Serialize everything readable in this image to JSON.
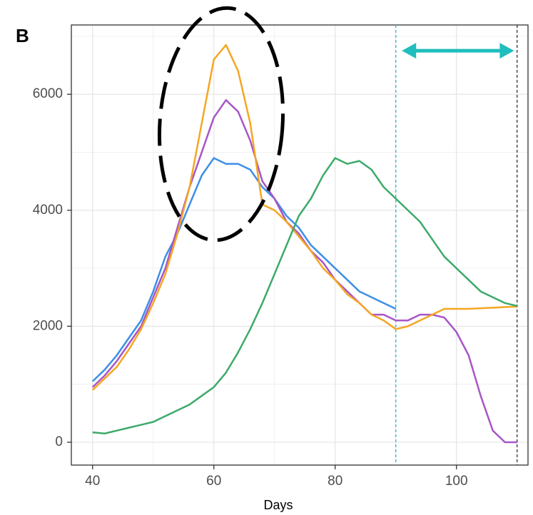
{
  "chart_data": {
    "type": "line",
    "panel_label": "B",
    "x_label": "Days",
    "x": [
      40,
      42,
      44,
      46,
      48,
      50,
      52,
      54,
      56,
      58,
      60,
      62,
      64,
      66,
      68,
      70,
      72,
      74,
      76,
      78,
      80,
      82,
      84,
      86,
      88,
      90,
      92,
      94,
      96,
      98,
      100,
      102,
      104,
      106,
      108,
      110
    ],
    "series": [
      {
        "name": "blue",
        "color": "#3d8fe8",
        "values": [
          1050,
          1250,
          1500,
          1800,
          2100,
          2600,
          3200,
          3600,
          4100,
          4600,
          4900,
          4800,
          4800,
          4700,
          4400,
          4200,
          3900,
          3700,
          3400,
          3200,
          3000,
          2800,
          2600,
          2500,
          2400,
          2300,
          null,
          null,
          null,
          null,
          null,
          null,
          null,
          null,
          null,
          null
        ]
      },
      {
        "name": "purple",
        "color": "#a855c8",
        "values": [
          950,
          1150,
          1400,
          1700,
          2000,
          2500,
          3000,
          3700,
          4400,
          5000,
          5600,
          5900,
          5700,
          5200,
          4500,
          4200,
          3800,
          3600,
          3300,
          3100,
          2800,
          2600,
          2400,
          2200,
          2200,
          2100,
          2100,
          2200,
          2200,
          2150,
          1900,
          1500,
          800,
          200,
          0,
          0
        ]
      },
      {
        "name": "orange",
        "color": "#f5a623",
        "values": [
          900,
          1100,
          1300,
          1600,
          1950,
          2400,
          2900,
          3600,
          4400,
          5500,
          6600,
          6850,
          6400,
          5500,
          4100,
          4000,
          3800,
          3550,
          3300,
          3000,
          2800,
          2550,
          2400,
          2200,
          2100,
          1950,
          2000,
          2100,
          2200,
          2300,
          2300,
          2300,
          2310,
          2320,
          2330,
          2340
        ]
      },
      {
        "name": "green",
        "color": "#3daa6a",
        "values": [
          170,
          150,
          200,
          250,
          300,
          350,
          450,
          550,
          650,
          800,
          950,
          1200,
          1550,
          1950,
          2400,
          2900,
          3400,
          3900,
          4200,
          4600,
          4900,
          4800,
          4850,
          4700,
          4400,
          4200,
          4000,
          3800,
          3500,
          3200,
          3000,
          2800,
          2600,
          2500,
          2400,
          2350
        ]
      }
    ],
    "xlim": [
      36.5,
      111.8
    ],
    "ylim": [
      -394,
      7195
    ],
    "xticks": [
      40,
      60,
      80,
      100
    ],
    "yticks": [
      0,
      2000,
      4000,
      6000
    ],
    "minor_xticks": [
      50,
      70,
      90,
      110
    ],
    "minor_yticks": [
      1000,
      3000,
      5000,
      7000
    ],
    "grid": true,
    "vlines": [
      {
        "value": 90,
        "color": "#2ab7c9"
      },
      {
        "value": 110,
        "color": "#333333"
      }
    ],
    "arrow": {
      "x": [
        91,
        109.5
      ],
      "y": 6750,
      "color": "#1fbdbd"
    }
  }
}
